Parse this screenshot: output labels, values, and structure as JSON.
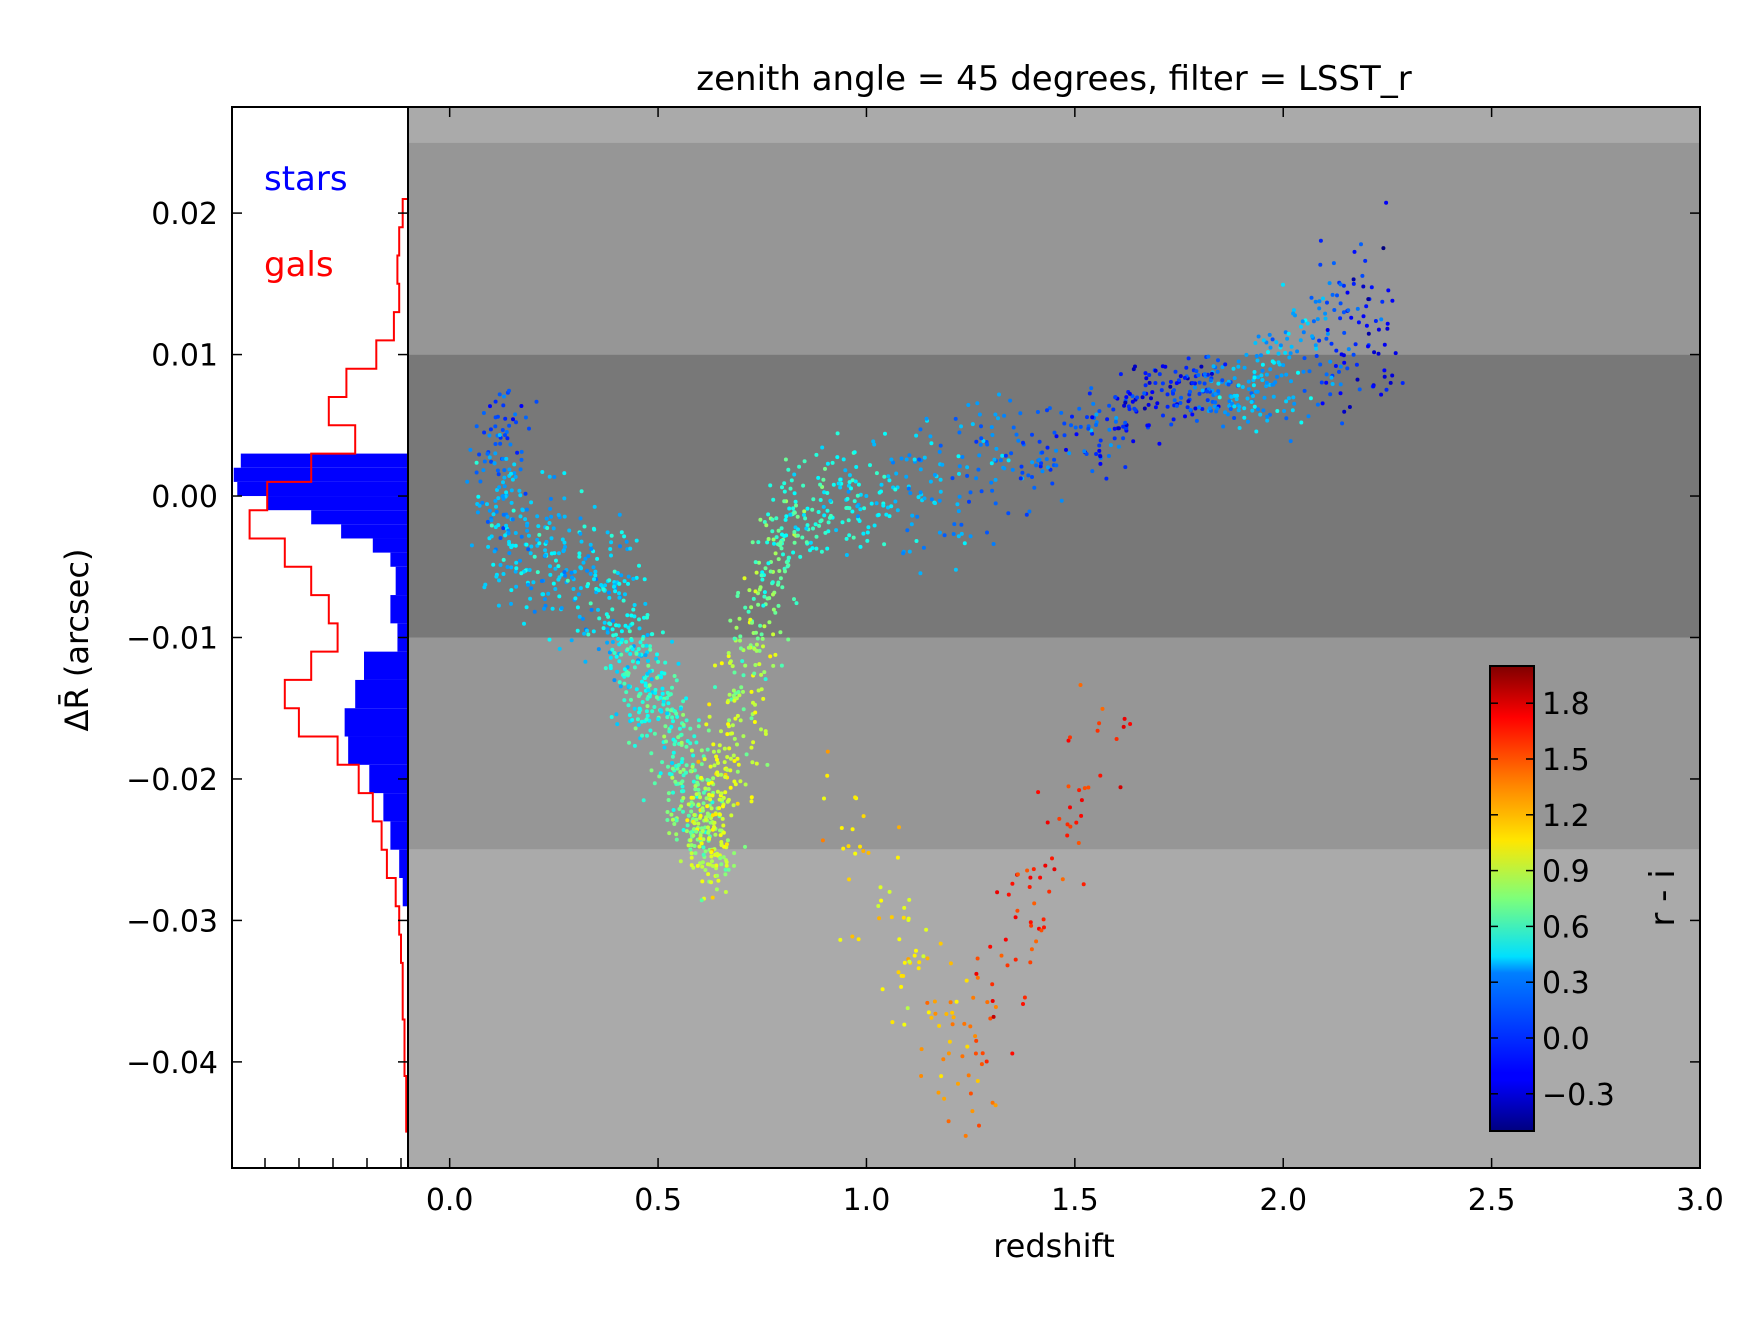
{
  "chart_data": [
    {
      "type": "scatter",
      "title": "zenith angle = 45 degrees, filter = LSST_r",
      "xlabel": "redshift",
      "ylabel": "ΔR̄ (arcsec)",
      "xlim": [
        -0.1,
        3.0
      ],
      "ylim": [
        -0.0475,
        0.0275
      ],
      "xticks": [
        "0.0",
        "0.5",
        "1.0",
        "1.5",
        "2.0",
        "2.5",
        "3.0"
      ],
      "yticks": [
        "0.02",
        "0.01",
        "0.00",
        "−0.01",
        "−0.02",
        "−0.03",
        "−0.04"
      ],
      "grid": false,
      "background_bands": [
        {
          "y0": -0.0475,
          "y1": -0.025,
          "color": "#aaaaaa"
        },
        {
          "y0": -0.025,
          "y1": -0.01,
          "color": "#969696"
        },
        {
          "y0": -0.01,
          "y1": 0.01,
          "color": "#787878"
        },
        {
          "y0": 0.01,
          "y1": 0.025,
          "color": "#969696"
        },
        {
          "y0": 0.025,
          "y1": 0.0275,
          "color": "#aaaaaa"
        }
      ],
      "point_trend": [
        {
          "z": 0.12,
          "y": 0.007,
          "spread": 0.002,
          "ri": 0.0
        },
        {
          "z": 0.12,
          "y": -0.004,
          "spread": 0.004,
          "ri": 0.3
        },
        {
          "z": 0.25,
          "y": -0.004,
          "spread": 0.005,
          "ri": 0.3
        },
        {
          "z": 0.4,
          "y": -0.007,
          "spread": 0.005,
          "ri": 0.35
        },
        {
          "z": 0.45,
          "y": -0.012,
          "spread": 0.004,
          "ri": 0.5
        },
        {
          "z": 0.52,
          "y": -0.016,
          "spread": 0.004,
          "ri": 0.55
        },
        {
          "z": 0.58,
          "y": -0.021,
          "spread": 0.003,
          "ri": 0.7
        },
        {
          "z": 0.62,
          "y": -0.026,
          "spread": 0.003,
          "ri": 0.9
        },
        {
          "z": 0.66,
          "y": -0.02,
          "spread": 0.003,
          "ri": 1.0
        },
        {
          "z": 0.72,
          "y": -0.011,
          "spread": 0.003,
          "ri": 0.8
        },
        {
          "z": 0.8,
          "y": -0.002,
          "spread": 0.004,
          "ri": 0.6
        },
        {
          "z": 0.95,
          "y": 0.0,
          "spread": 0.004,
          "ri": 0.45
        },
        {
          "z": 1.2,
          "y": 0.001,
          "spread": 0.005,
          "ri": 0.2
        },
        {
          "z": 1.5,
          "y": 0.004,
          "spread": 0.003,
          "ri": 0.0
        },
        {
          "z": 1.75,
          "y": 0.008,
          "spread": 0.002,
          "ri": -0.2
        },
        {
          "z": 1.9,
          "y": 0.007,
          "spread": 0.002,
          "ri": 0.3
        },
        {
          "z": 2.05,
          "y": 0.011,
          "spread": 0.005,
          "ri": 0.2
        },
        {
          "z": 2.25,
          "y": 0.012,
          "spread": 0.006,
          "ri": -0.3
        }
      ],
      "faint_tail": [
        {
          "z": 0.9,
          "y": -0.018,
          "ri": 1.1
        },
        {
          "z": 1.05,
          "y": -0.03,
          "ri": 1.1
        },
        {
          "z": 1.15,
          "y": -0.036,
          "ri": 1.2
        },
        {
          "z": 1.25,
          "y": -0.041,
          "ri": 1.4
        },
        {
          "z": 1.35,
          "y": -0.032,
          "ri": 1.6
        },
        {
          "z": 1.45,
          "y": -0.025,
          "ri": 1.6
        },
        {
          "z": 1.6,
          "y": -0.015,
          "ri": 1.6
        }
      ]
    },
    {
      "type": "histogram",
      "orientation": "horizontal",
      "series": [
        {
          "name": "stars",
          "color": "#0000ff",
          "style": "filled",
          "y_centers": [
            0.0025,
            0.0015,
            0.0005,
            -0.0005,
            -0.0015,
            -0.0025,
            -0.0035,
            -0.0045,
            -0.006,
            -0.008,
            -0.01,
            -0.012,
            -0.014,
            -0.016,
            -0.018,
            -0.02,
            -0.022,
            -0.024,
            -0.026,
            -0.028
          ],
          "counts": [
            0.95,
            0.99,
            0.97,
            0.8,
            0.55,
            0.38,
            0.2,
            0.1,
            0.07,
            0.1,
            0.06,
            0.25,
            0.3,
            0.36,
            0.34,
            0.22,
            0.14,
            0.1,
            0.05,
            0.03
          ]
        },
        {
          "name": "gals",
          "color": "#ff0000",
          "style": "step",
          "y_centers": [
            0.02,
            0.018,
            0.016,
            0.014,
            0.012,
            0.01,
            0.008,
            0.006,
            0.004,
            0.002,
            0.0,
            -0.002,
            -0.004,
            -0.006,
            -0.008,
            -0.01,
            -0.012,
            -0.014,
            -0.016,
            -0.018,
            -0.02,
            -0.022,
            -0.024,
            -0.026,
            -0.028,
            -0.03,
            -0.032,
            -0.034,
            -0.036,
            -0.038,
            -0.04,
            -0.042,
            -0.044
          ],
          "counts": [
            0.03,
            0.05,
            0.06,
            0.05,
            0.08,
            0.18,
            0.35,
            0.45,
            0.3,
            0.55,
            0.8,
            0.9,
            0.7,
            0.55,
            0.45,
            0.4,
            0.55,
            0.7,
            0.62,
            0.4,
            0.28,
            0.2,
            0.15,
            0.12,
            0.07,
            0.05,
            0.04,
            0.03,
            0.03,
            0.02,
            0.02,
            0.01,
            0.01
          ]
        }
      ],
      "legend": [
        "stars",
        "gals"
      ],
      "legend_location": "top-left"
    },
    {
      "type": "colorbar",
      "label": "r - i",
      "range": [
        -0.5,
        2.0
      ],
      "colormap": "jet",
      "ticks": [
        "1.8",
        "1.5",
        "1.2",
        "0.9",
        "0.6",
        "0.3",
        "0.0",
        "−0.3"
      ],
      "tick_values": [
        1.8,
        1.5,
        1.2,
        0.9,
        0.6,
        0.3,
        0.0,
        -0.3
      ]
    }
  ]
}
